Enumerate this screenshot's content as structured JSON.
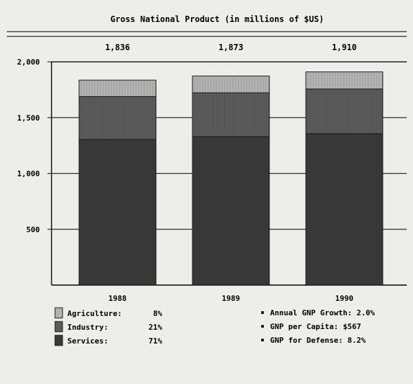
{
  "chart_data": {
    "type": "bar",
    "stacked": true,
    "title": "Gross National Product (in millions of $US)",
    "categories": [
      "1988",
      "1989",
      "1990"
    ],
    "totals": [
      "1,836",
      "1,873",
      "1,910"
    ],
    "series": [
      {
        "name": "Services",
        "values": [
          1304,
          1330,
          1356
        ],
        "color": "#3a3a3a"
      },
      {
        "name": "Industry",
        "values": [
          385,
          393,
          401
        ],
        "color": "#5b5b5b"
      },
      {
        "name": "Agriculture",
        "values": [
          147,
          150,
          153
        ],
        "color": "#b3b3b3"
      }
    ],
    "ylim": [
      0,
      2000
    ],
    "yticks": [
      {
        "value": 500,
        "label": "500"
      },
      {
        "value": 1000,
        "label": "1,000"
      },
      {
        "value": 1500,
        "label": "1,500"
      },
      {
        "value": 2000,
        "label": "2,000"
      }
    ],
    "grid": true,
    "legend": [
      {
        "name": "Agriculture:",
        "pct": "8%"
      },
      {
        "name": "Industry:",
        "pct": "21%"
      },
      {
        "name": "Services:",
        "pct": "71%"
      }
    ],
    "stats": [
      {
        "text": "Annual GNP Growth: 2.0%"
      },
      {
        "text": "GNP per Capita: $567"
      },
      {
        "text": "GNP for Defense: 8.2%"
      }
    ]
  }
}
